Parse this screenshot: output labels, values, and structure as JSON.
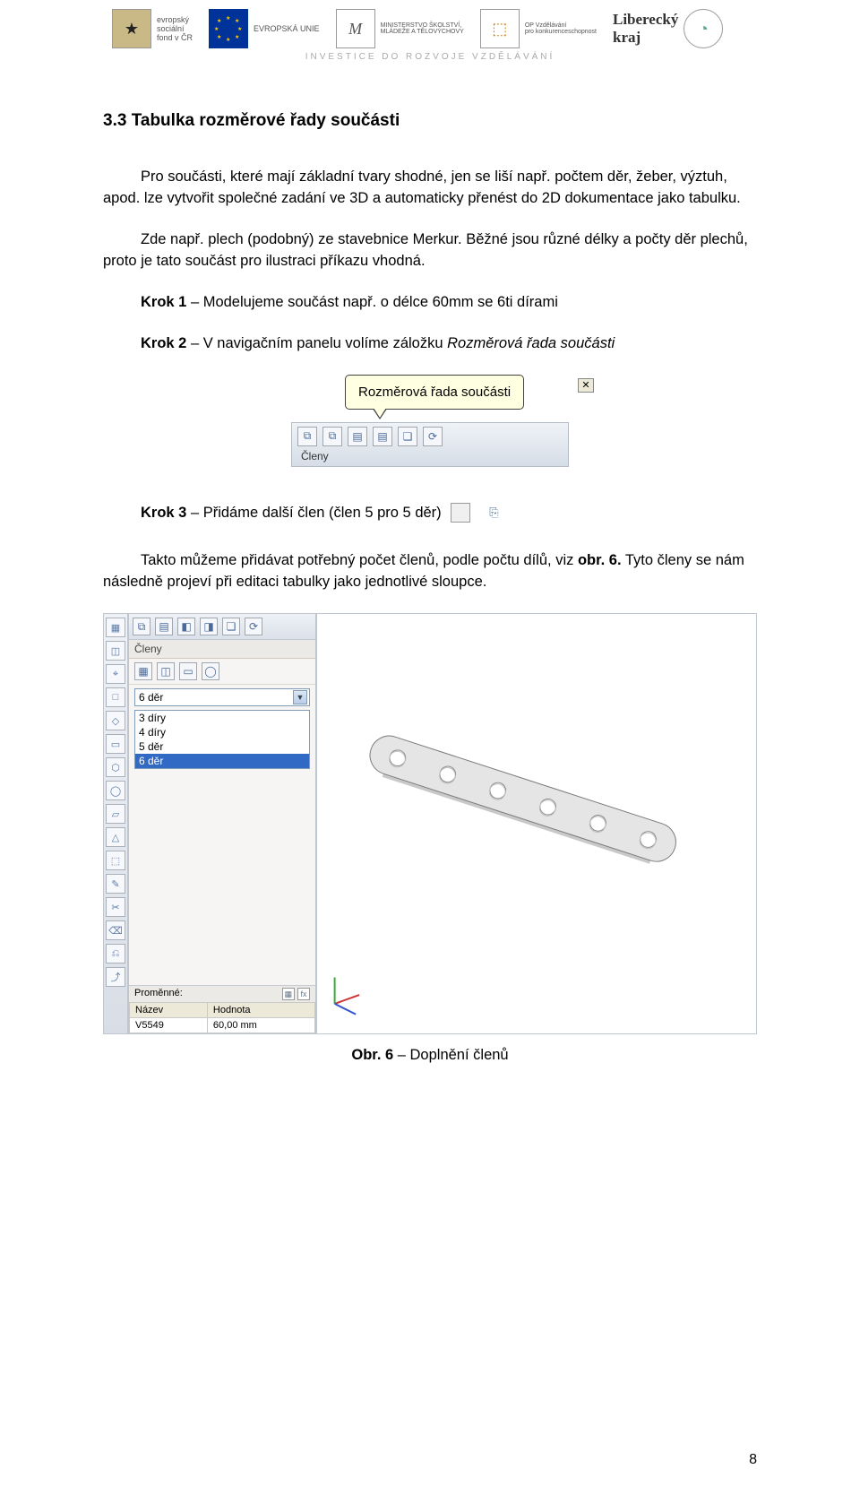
{
  "header": {
    "logos": [
      {
        "name": "esf",
        "label_lines": [
          "evropský",
          "sociální",
          "fond v ČR"
        ],
        "glyph": "★",
        "bg": "#b9a56a"
      },
      {
        "name": "eu",
        "label_lines": [
          "EVROPSKÁ UNIE"
        ],
        "glyph": "",
        "bg": "#003399"
      },
      {
        "name": "msmt",
        "label_lines": [
          "MINISTERSTVO ŠKOLSTVÍ,",
          "MLÁDEŽE A TĚLOVÝCHOVY"
        ],
        "glyph": "M",
        "bg": "#ffffff"
      },
      {
        "name": "op",
        "label_lines": [
          "OP Vzdělávání",
          "pro konkurenceschopnost"
        ],
        "glyph": "⬚",
        "bg": "#ffffff"
      },
      {
        "name": "liberecky",
        "label_lines": [
          "Liberecký",
          "kraj"
        ],
        "glyph": "◔",
        "bg": "#ffffff"
      }
    ],
    "invest_line": "INVESTICE DO ROZVOJE VZDĚLÁVÁNÍ"
  },
  "section_title": "3.3 Tabulka rozměrové řady součásti",
  "para1": "Pro součásti, které mají základní tvary shodné, jen se liší např. počtem děr, žeber, výztuh, apod. lze vytvořit společné zadání ve 3D a automaticky přenést do 2D dokumentace jako tabulku.",
  "para2": "Zde např. plech (podobný) ze stavebnice Merkur. Běžné jsou různé délky a počty děr plechů, proto je tato součást pro ilustraci příkazu vhodná.",
  "krok1": {
    "bold": "Krok 1",
    "rest": " – Modelujeme součást např. o délce 60mm se 6ti dírami"
  },
  "krok2": {
    "bold": "Krok 2",
    "rest_pre": " – V navigačním panelu volíme záložku ",
    "italic": "Rozměrová řada součásti"
  },
  "tooltip": {
    "text": "Rozměrová řada součásti",
    "toolbar_label": "Členy",
    "icons": [
      "⧉",
      "⧉",
      "▤",
      "▤",
      "❏",
      "⟳"
    ]
  },
  "krok3": {
    "bold": "Krok 3",
    "rest": " – Přidáme další člen (člen 5 pro 5 děr)"
  },
  "para3_a": "Takto můžeme přidávat potřebný počet členů, podle počtu dílů, viz ",
  "para3_bold": "obr. 6.",
  "para3_b": " Tyto členy se nám následně projeví při editaci tabulky jako jednotlivé sloupce.",
  "app": {
    "vtoolbar_icons": [
      "▦",
      "◫",
      "⌖",
      "□",
      "◇",
      "▭",
      "⬡",
      "◯",
      "▱",
      "△",
      "⬚",
      "✎",
      "✂",
      "⌫",
      "⎌",
      "⤴"
    ],
    "top_icons": [
      "⧉",
      "▤",
      "◧",
      "◨",
      "❏",
      "⟳"
    ],
    "section_label": "Členy",
    "row_icons": [
      "▦",
      "◫",
      "▭",
      "◯"
    ],
    "combo_value": "6 děr",
    "list_items": [
      "3 díry",
      "4 díry",
      "5 děr",
      "6 děr"
    ],
    "list_selected_index": 3,
    "bottom_label": "Proměnné:",
    "table_headers": [
      "Název",
      "Hodnota"
    ],
    "table_row": [
      "V5549",
      "60,00 mm"
    ],
    "part": {
      "body_fill": "#e5e5e5",
      "body_stroke": "#7a7a7a",
      "hole_fill": "#ffffff",
      "hole_stroke": "#888888",
      "shadow": "#c9c9c9",
      "holes": 6
    }
  },
  "caption": {
    "bold": "Obr. 6",
    "rest": " – Doplnění členů"
  },
  "page_number": "8",
  "colors": {
    "text": "#000000",
    "tooltip_bg": "#ffffe1",
    "tooltip_border": "#404040",
    "panel_bg": "#f6f5f3"
  }
}
